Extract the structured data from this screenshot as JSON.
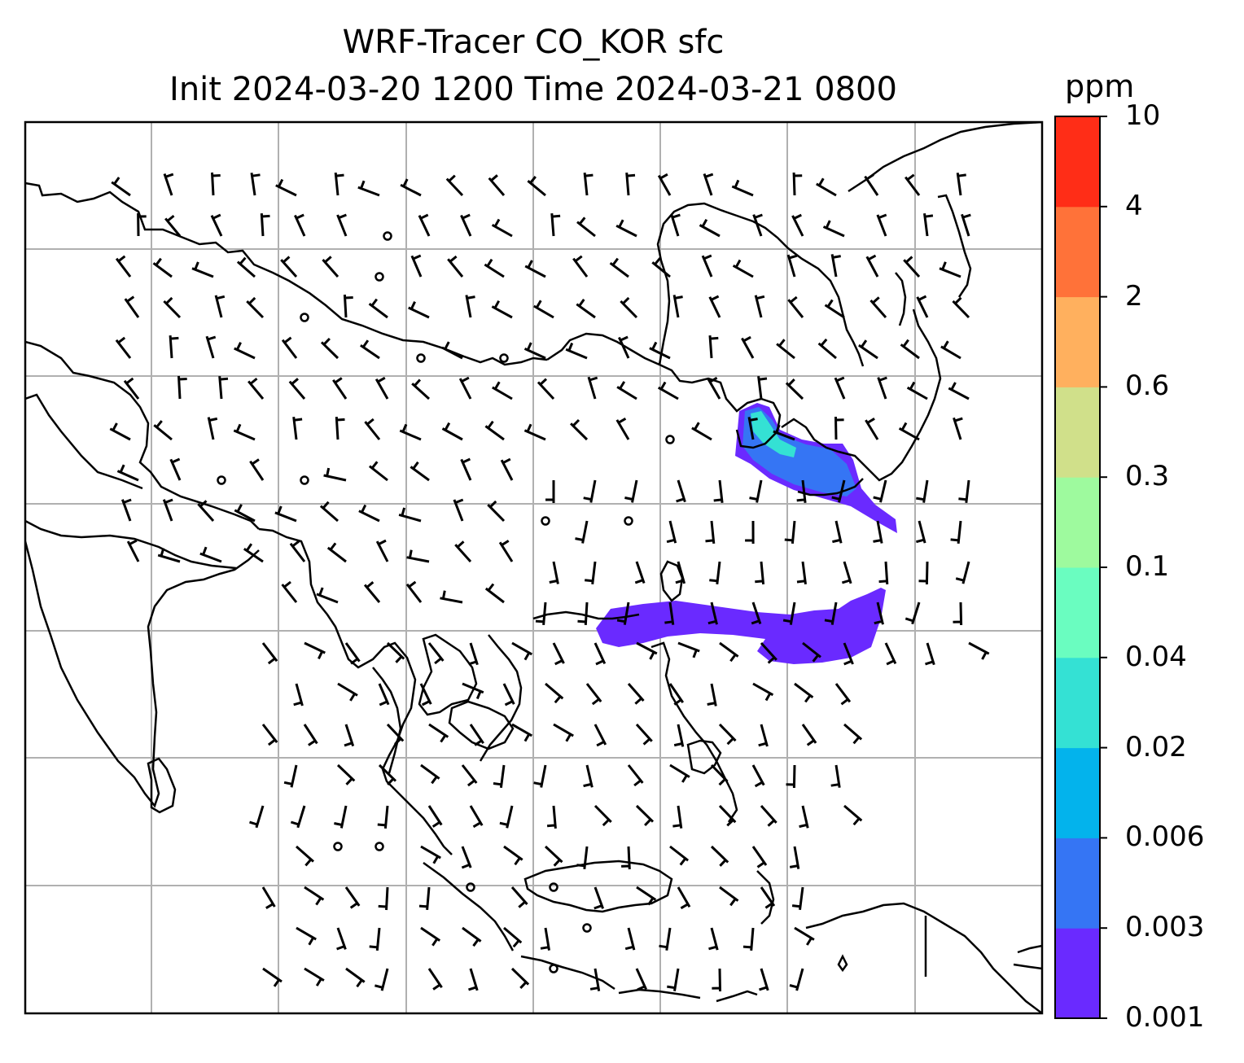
{
  "title_line1": "WRF-Tracer CO_KOR sfc",
  "title_line2": "Init 2024-03-20 1200 Time 2024-03-21 0800",
  "colorbar": {
    "unit": "ppm",
    "levels": [
      "0.001",
      "0.003",
      "0.006",
      "0.02",
      "0.04",
      "0.1",
      "0.3",
      "0.6",
      "2",
      "4",
      "10"
    ],
    "colors": [
      "#6a2aff",
      "#3575f4",
      "#03b3ec",
      "#34e1d4",
      "#6afdc0",
      "#9efa9e",
      "#d0e08a",
      "#ffb05e",
      "#ff7239",
      "#ff2d17"
    ]
  },
  "map": {
    "gridlines": "on",
    "land_line_color": "#000000",
    "grid_color": "#b0b0b0",
    "plume_colors": {
      "low": "#6a2aff",
      "mid": "#3575f4",
      "high": "#34e1d4"
    }
  }
}
